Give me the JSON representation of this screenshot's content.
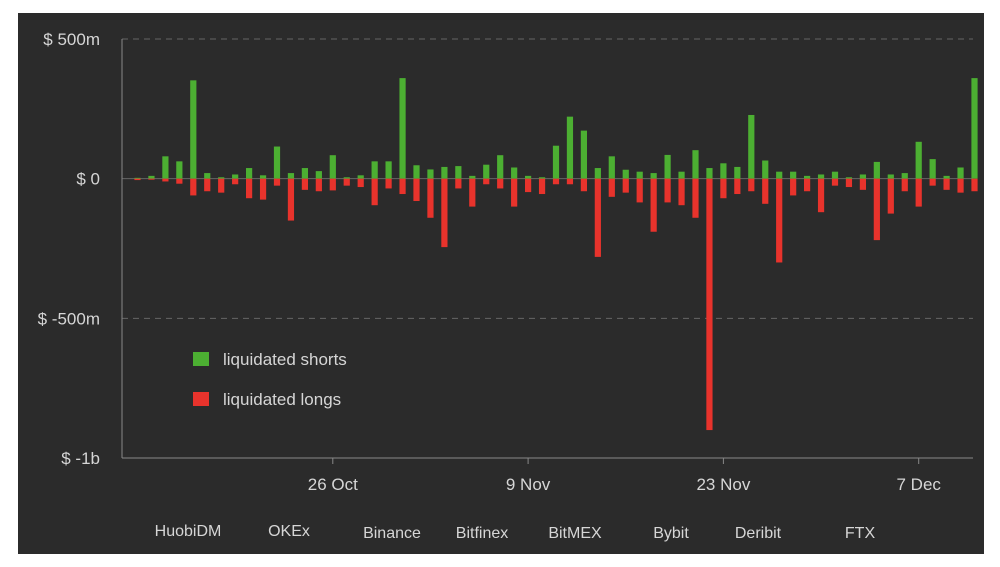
{
  "chart_data": {
    "type": "bar",
    "title": "",
    "xlabel": "",
    "ylabel": "",
    "ylim": [
      -1000,
      500
    ],
    "yticks": [
      {
        "value": 500,
        "label": "$ 500m"
      },
      {
        "value": 0,
        "label": "$ 0"
      },
      {
        "value": -500,
        "label": "$ -500m"
      },
      {
        "value": -1000,
        "label": "$ -1b"
      }
    ],
    "xticks": [
      {
        "index": 14,
        "label": "26 Oct"
      },
      {
        "index": 28,
        "label": "9 Nov"
      },
      {
        "index": 42,
        "label": "23 Nov"
      },
      {
        "index": 56,
        "label": "7 Dec"
      }
    ],
    "grid": true,
    "legend_placement": "lower-left",
    "colors": {
      "shorts": "#4caf32",
      "longs": "#e8332c",
      "background": "#2b2b2b",
      "grid": "#666666",
      "text": "#d6d6d6"
    },
    "series": [
      {
        "name": "liquidated shorts",
        "color": "#4caf32",
        "values": [
          3,
          10,
          80,
          62,
          352,
          20,
          5,
          15,
          38,
          12,
          115,
          20,
          38,
          27,
          84,
          5,
          12,
          62,
          62,
          360,
          48,
          33,
          42,
          45,
          10,
          50,
          84,
          40,
          10,
          5,
          118,
          222,
          172,
          38,
          80,
          32,
          25,
          20,
          85,
          25,
          102,
          38,
          55,
          42,
          228,
          65,
          25,
          25,
          10,
          15,
          25,
          5,
          15,
          60,
          15,
          20,
          132,
          70,
          10,
          40,
          360
        ]
      },
      {
        "name": "liquidated longs",
        "color": "#e8332c",
        "values": [
          -5,
          -3,
          -10,
          -18,
          -60,
          -45,
          -50,
          -20,
          -70,
          -75,
          -25,
          -150,
          -40,
          -45,
          -42,
          -25,
          -30,
          -95,
          -35,
          -55,
          -80,
          -140,
          -245,
          -35,
          -100,
          -20,
          -35,
          -100,
          -48,
          -55,
          -20,
          -20,
          -45,
          -280,
          -65,
          -50,
          -85,
          -190,
          -85,
          -95,
          -140,
          -900,
          -70,
          -55,
          -45,
          -90,
          -300,
          -60,
          -45,
          -120,
          -25,
          -30,
          -40,
          -220,
          -125,
          -45,
          -100,
          -25,
          -40,
          -50,
          -45
        ]
      }
    ]
  },
  "exchanges": [
    "HuobiDM",
    "OKEx",
    "Binance",
    "Bitfinex",
    "BitMEX",
    "Bybit",
    "Deribit",
    "FTX"
  ]
}
